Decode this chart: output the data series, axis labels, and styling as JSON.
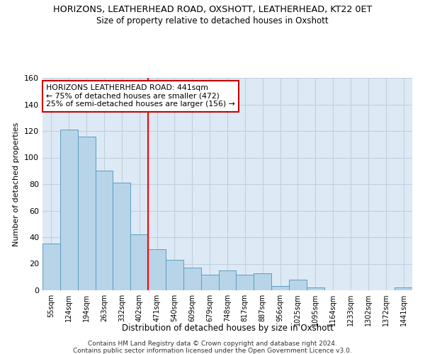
{
  "title": "HORIZONS, LEATHERHEAD ROAD, OXSHOTT, LEATHERHEAD, KT22 0ET",
  "subtitle": "Size of property relative to detached houses in Oxshott",
  "xlabel": "Distribution of detached houses by size in Oxshott",
  "ylabel": "Number of detached properties",
  "categories": [
    "55sqm",
    "124sqm",
    "194sqm",
    "263sqm",
    "332sqm",
    "402sqm",
    "471sqm",
    "540sqm",
    "609sqm",
    "679sqm",
    "748sqm",
    "817sqm",
    "887sqm",
    "956sqm",
    "1025sqm",
    "1095sqm",
    "1164sqm",
    "1233sqm",
    "1302sqm",
    "1372sqm",
    "1441sqm"
  ],
  "values": [
    35,
    121,
    116,
    90,
    81,
    42,
    31,
    23,
    17,
    12,
    15,
    12,
    13,
    3,
    8,
    2,
    0,
    0,
    0,
    0,
    2
  ],
  "bar_color": "#b8d4e8",
  "bar_edge_color": "#5a9fc0",
  "red_line_index": 6,
  "annotation_text": "HORIZONS LEATHERHEAD ROAD: 441sqm\n← 75% of detached houses are smaller (472)\n25% of semi-detached houses are larger (156) →",
  "annotation_box_color": "#ffffff",
  "annotation_box_edge": "#cc0000",
  "ylim": [
    0,
    160
  ],
  "yticks": [
    0,
    20,
    40,
    60,
    80,
    100,
    120,
    140,
    160
  ],
  "footer1": "Contains HM Land Registry data © Crown copyright and database right 2024.",
  "footer2": "Contains public sector information licensed under the Open Government Licence v3.0.",
  "bg_color": "#ffffff",
  "plot_bg_color": "#ddeaf5",
  "grid_color": "#c0d0e0"
}
